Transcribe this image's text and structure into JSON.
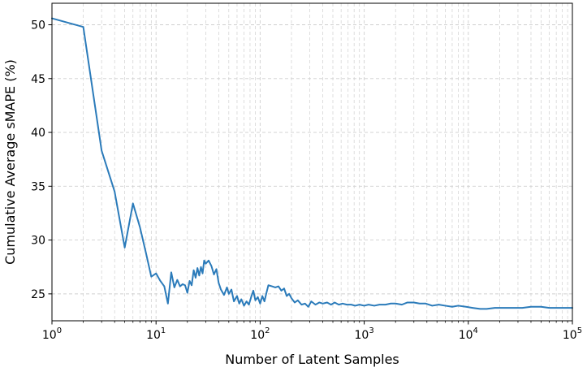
{
  "chart_data": {
    "type": "line",
    "title": "",
    "xlabel": "Number of Latent Samples",
    "ylabel": "Cumulative Average sMAPE (%)",
    "x_scale": "log",
    "xlim": [
      1,
      100000
    ],
    "ylim": [
      22.5,
      52
    ],
    "x_ticks": [
      {
        "value": 1,
        "base": "10",
        "exp": "0"
      },
      {
        "value": 10,
        "base": "10",
        "exp": "1"
      },
      {
        "value": 100,
        "base": "10",
        "exp": "2"
      },
      {
        "value": 1000,
        "base": "10",
        "exp": "3"
      },
      {
        "value": 10000,
        "base": "10",
        "exp": "4"
      },
      {
        "value": 100000,
        "base": "10",
        "exp": "5"
      }
    ],
    "y_ticks": [
      {
        "value": 25,
        "label": "25"
      },
      {
        "value": 30,
        "label": "30"
      },
      {
        "value": 35,
        "label": "35"
      },
      {
        "value": 40,
        "label": "40"
      },
      {
        "value": 45,
        "label": "45"
      },
      {
        "value": 50,
        "label": "50"
      }
    ],
    "grid": true,
    "color": "#2b7bba",
    "series": [
      {
        "x": [
          1,
          2,
          3,
          4,
          5,
          6,
          7,
          8,
          9,
          10,
          11,
          12,
          13,
          14,
          15,
          16,
          17,
          18,
          19,
          20,
          21,
          22,
          23,
          24,
          25,
          26,
          27,
          28,
          29,
          30,
          32,
          34,
          36,
          38,
          40,
          42,
          45,
          48,
          50,
          53,
          56,
          60,
          63,
          66,
          70,
          74,
          78,
          82,
          86,
          90,
          95,
          100,
          105,
          110,
          115,
          120,
          130,
          140,
          150,
          160,
          170,
          180,
          190,
          200,
          215,
          230,
          250,
          270,
          290,
          310,
          340,
          370,
          400,
          440,
          480,
          520,
          570,
          620,
          680,
          750,
          820,
          900,
          1000,
          1100,
          1250,
          1400,
          1600,
          1800,
          2000,
          2300,
          2600,
          3000,
          3400,
          3900,
          4500,
          5200,
          6000,
          7000,
          8000,
          9500,
          11000,
          13000,
          15000,
          18000,
          22000,
          27000,
          33000,
          40000,
          50000,
          60000,
          75000,
          100000
        ],
        "y": [
          50.6,
          49.8,
          38.3,
          34.5,
          29.3,
          33.4,
          31.2,
          28.8,
          26.6,
          26.9,
          26.2,
          25.7,
          24.1,
          27.0,
          25.6,
          26.3,
          25.7,
          25.9,
          25.8,
          25.1,
          26.2,
          25.8,
          27.2,
          26.5,
          27.4,
          26.7,
          27.5,
          26.9,
          28.1,
          27.8,
          28.1,
          27.6,
          26.8,
          27.3,
          26.0,
          25.4,
          24.9,
          25.6,
          25.0,
          25.4,
          24.3,
          24.8,
          24.1,
          24.5,
          23.9,
          24.3,
          24.0,
          24.7,
          25.3,
          24.4,
          24.7,
          24.1,
          24.8,
          24.3,
          25.1,
          25.8,
          25.7,
          25.6,
          25.7,
          25.3,
          25.5,
          24.8,
          25.0,
          24.6,
          24.2,
          24.4,
          24.0,
          24.1,
          23.8,
          24.3,
          24.0,
          24.2,
          24.1,
          24.2,
          24.0,
          24.2,
          24.0,
          24.1,
          24.0,
          24.0,
          23.9,
          24.0,
          23.9,
          24.0,
          23.9,
          24.0,
          24.0,
          24.1,
          24.1,
          24.0,
          24.2,
          24.2,
          24.1,
          24.1,
          23.9,
          24.0,
          23.9,
          23.8,
          23.9,
          23.8,
          23.7,
          23.6,
          23.6,
          23.7,
          23.7,
          23.7,
          23.7,
          23.8,
          23.8,
          23.7,
          23.7,
          23.7
        ]
      }
    ]
  }
}
